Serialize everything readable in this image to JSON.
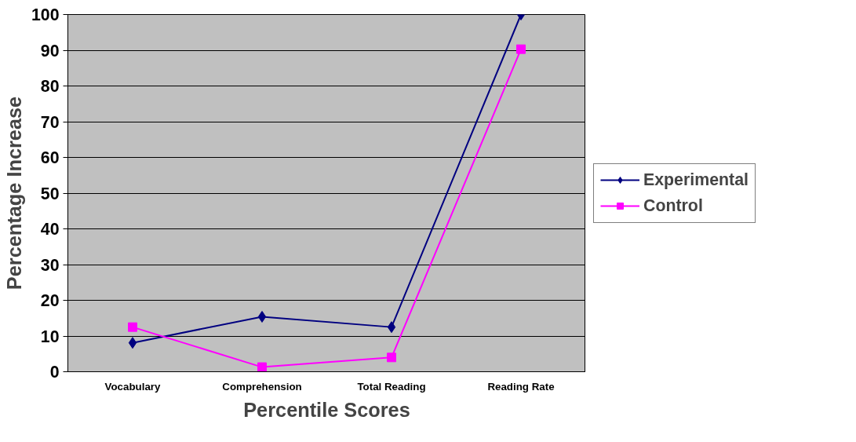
{
  "chart_data": {
    "type": "line",
    "xlabel": "Percentile Scores",
    "ylabel": "Percentage Increase",
    "categories": [
      "Vocabulary",
      "Comprehension",
      "Total Reading",
      "Reading Rate"
    ],
    "series": [
      {
        "name": "Experimental",
        "color": "#000080",
        "marker": "diamond",
        "values": [
          8.1,
          15.4,
          12.5,
          100
        ]
      },
      {
        "name": "Control",
        "color": "#ff00ff",
        "marker": "square",
        "values": [
          12.5,
          1.3,
          4.0,
          90.3
        ]
      }
    ],
    "ylim": [
      0,
      100
    ],
    "yticks": [
      0,
      10,
      20,
      30,
      40,
      50,
      60,
      70,
      80,
      90,
      100
    ],
    "grid": "y",
    "legend": "right"
  }
}
